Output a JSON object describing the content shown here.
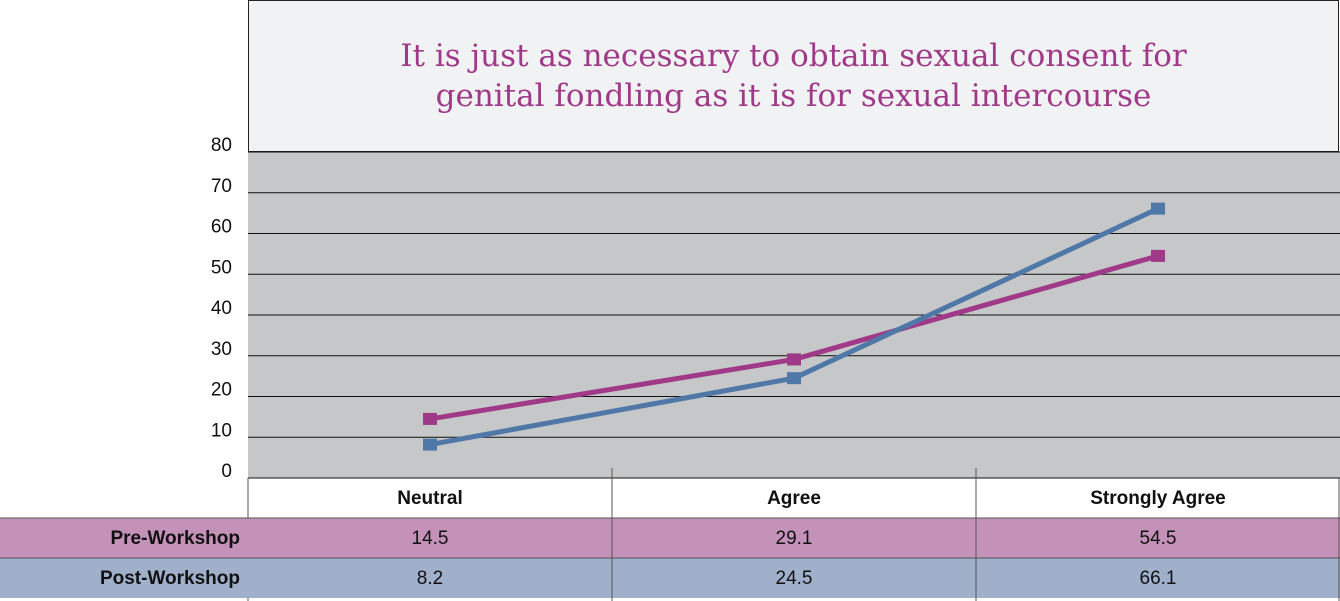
{
  "chart_data": {
    "type": "line",
    "title": "It is just as necessary to obtain sexual consent for genital fondling as it is for sexual intercourse",
    "categories": [
      "Neutral",
      "Agree",
      "Strongly Agree"
    ],
    "series": [
      {
        "name": "Pre-Workshop",
        "color": "#a03a88",
        "table_color": "#c491b8",
        "values": [
          14.5,
          29.1,
          54.5
        ]
      },
      {
        "name": "Post-Workshop",
        "color": "#4f78a8",
        "table_color": "#a0b0cb",
        "values": [
          8.2,
          24.5,
          66.1
        ]
      }
    ],
    "ylim": [
      0,
      80
    ],
    "yticks": [
      0,
      10,
      20,
      30,
      40,
      50,
      60,
      70,
      80
    ],
    "grid": true
  }
}
